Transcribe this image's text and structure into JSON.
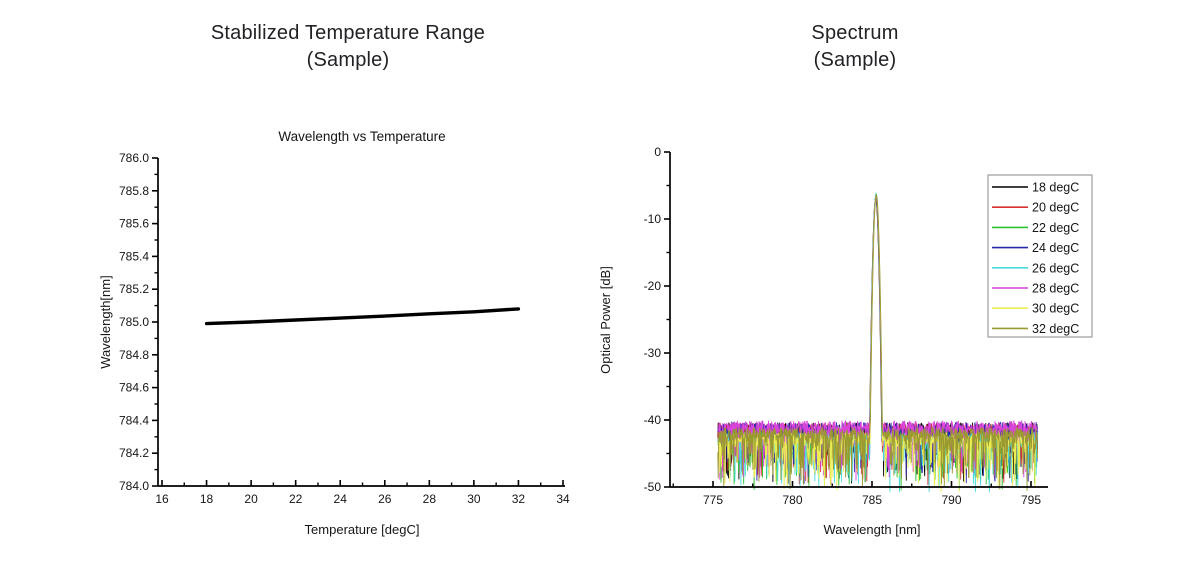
{
  "page": {
    "background": "#ffffff",
    "text_color": "#222226"
  },
  "panels": [
    {
      "title_line1": "Stabilized Temperature Range",
      "title_line2": "(Sample)"
    },
    {
      "title_line1": "Spectrum",
      "title_line2": "(Sample)"
    }
  ],
  "chart_data": [
    {
      "type": "line",
      "name": "wavelength-vs-temperature",
      "title": "Wavelength vs Temperature",
      "xlabel": "Temperature [degC]",
      "ylabel": "Wavelength[nm]",
      "xlim": [
        16,
        34
      ],
      "ylim": [
        784.0,
        786.0
      ],
      "xtick_step": 2,
      "xminor_step": 1,
      "ytick_step": 0.2,
      "yminor_step": 0.1,
      "ytick_decimals": 1,
      "grid": false,
      "legend_position": "none",
      "axis_color": "#000000",
      "series": [
        {
          "name": "wavelength",
          "color": "#000000",
          "width": 3.4,
          "x": [
            18,
            20,
            22,
            24,
            26,
            28,
            30,
            32
          ],
          "y": [
            784.99,
            785.0,
            785.012,
            785.024,
            785.036,
            785.05,
            785.062,
            785.08
          ]
        }
      ]
    },
    {
      "type": "line",
      "name": "spectrum",
      "title": "",
      "xlabel": "Wavelength [nm]",
      "ylabel": "Optical Power [dB]",
      "xlim": [
        775,
        795
      ],
      "ylim": [
        -50,
        0
      ],
      "xtick_step": 5,
      "xminor_step": 2.5,
      "ytick_step": 10,
      "yminor_step": 5,
      "ytick_decimals": 0,
      "grid": false,
      "legend_position": "top-right",
      "legend_border_color": "#8a8a8a",
      "axis_color": "#000000",
      "series": [
        {
          "name": "18 degC",
          "color": "#000000"
        },
        {
          "name": "20 degC",
          "color": "#d93131"
        },
        {
          "name": "22 degC",
          "color": "#2fc12f"
        },
        {
          "name": "24 degC",
          "color": "#2929ad"
        },
        {
          "name": "26 degC",
          "color": "#49dcdc"
        },
        {
          "name": "28 degC",
          "color": "#d944d9"
        },
        {
          "name": "30 degC",
          "color": "#eded52"
        },
        {
          "name": "32 degC",
          "color": "#9a9a30"
        }
      ],
      "signal": {
        "peak_center_nm": 785.25,
        "peak_power_db": -6.2,
        "peak_base_halfwidth_nm": 0.38,
        "noise_floor_db": -42,
        "noise_band_top_db": -40.3,
        "noise_min_db": -50.7,
        "x_start_nm": 775.3,
        "x_end_nm": 795.4,
        "points_per_series": 800
      }
    }
  ]
}
